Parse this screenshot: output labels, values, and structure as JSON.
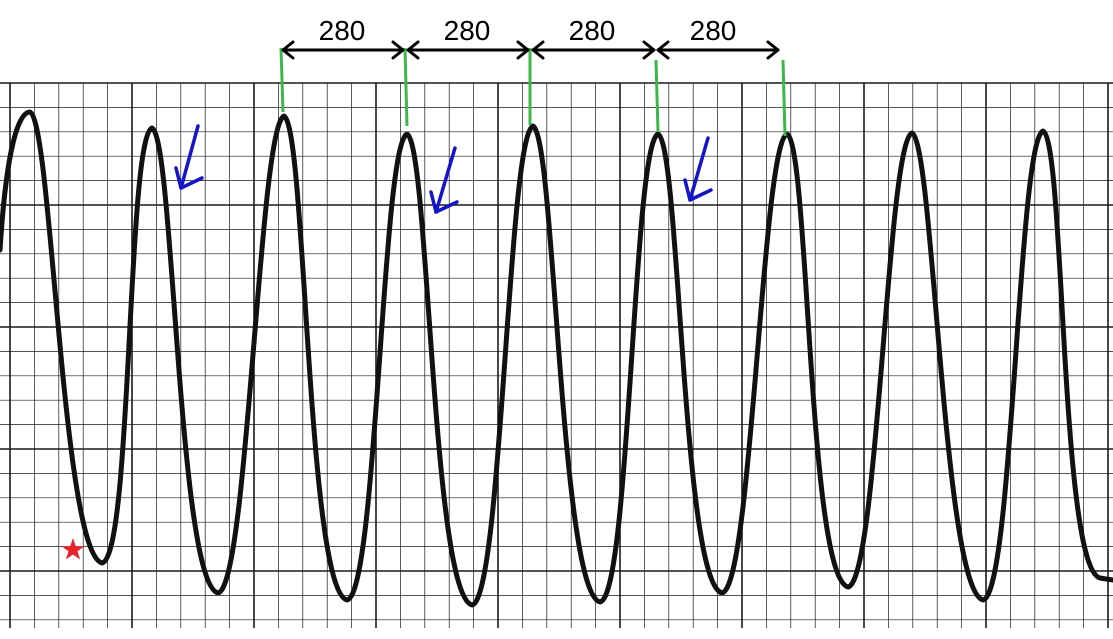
{
  "intervals": [
    {
      "label": "280"
    },
    {
      "label": "280"
    },
    {
      "label": "280"
    },
    {
      "label": "280"
    }
  ],
  "colors": {
    "paper": "#ffffff",
    "grid": "#1a1a1a",
    "trace": "#111111",
    "interval_marker": "#3cb84a",
    "arrow": "#1414c8",
    "star": "#e8232a",
    "caliper": "#000000"
  },
  "annotations": {
    "arrow_icon": "blue-down-left-arrow",
    "star_icon": "red-star"
  }
}
